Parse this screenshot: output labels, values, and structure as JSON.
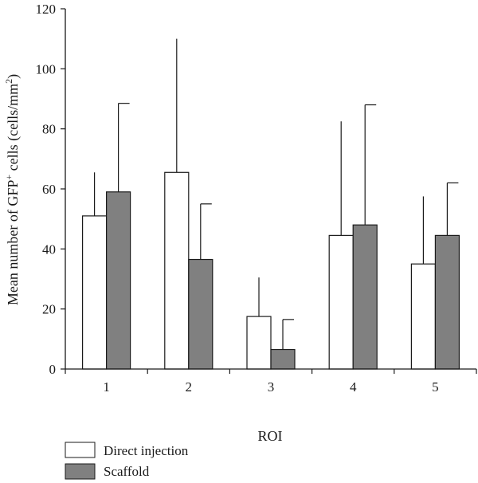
{
  "chart_data": {
    "type": "bar",
    "categories": [
      "1",
      "2",
      "3",
      "4",
      "5"
    ],
    "series": [
      {
        "name": "Direct injection",
        "values": [
          51,
          65.5,
          17.5,
          44.5,
          35
        ],
        "errors_upper": [
          65.5,
          110,
          30.5,
          82.5,
          57.5
        ],
        "color": "#ffffff"
      },
      {
        "name": "Scaffold",
        "values": [
          59,
          36.5,
          6.5,
          48,
          44.5
        ],
        "errors_upper": [
          88.5,
          55,
          16.5,
          88,
          62
        ],
        "color": "#808080"
      }
    ],
    "xlabel": "ROI",
    "ylabel_prefix": "Mean number of GFP",
    "ylabel_sup": "+",
    "ylabel_mid": " cells (cells/mm",
    "ylabel_sup2": "2",
    "ylabel_suffix": ")",
    "ylim": [
      0,
      120
    ],
    "yticks": [
      "0",
      "20",
      "40",
      "60",
      "80",
      "100",
      "120"
    ],
    "grid": false,
    "legend_position": "bottom-left"
  }
}
